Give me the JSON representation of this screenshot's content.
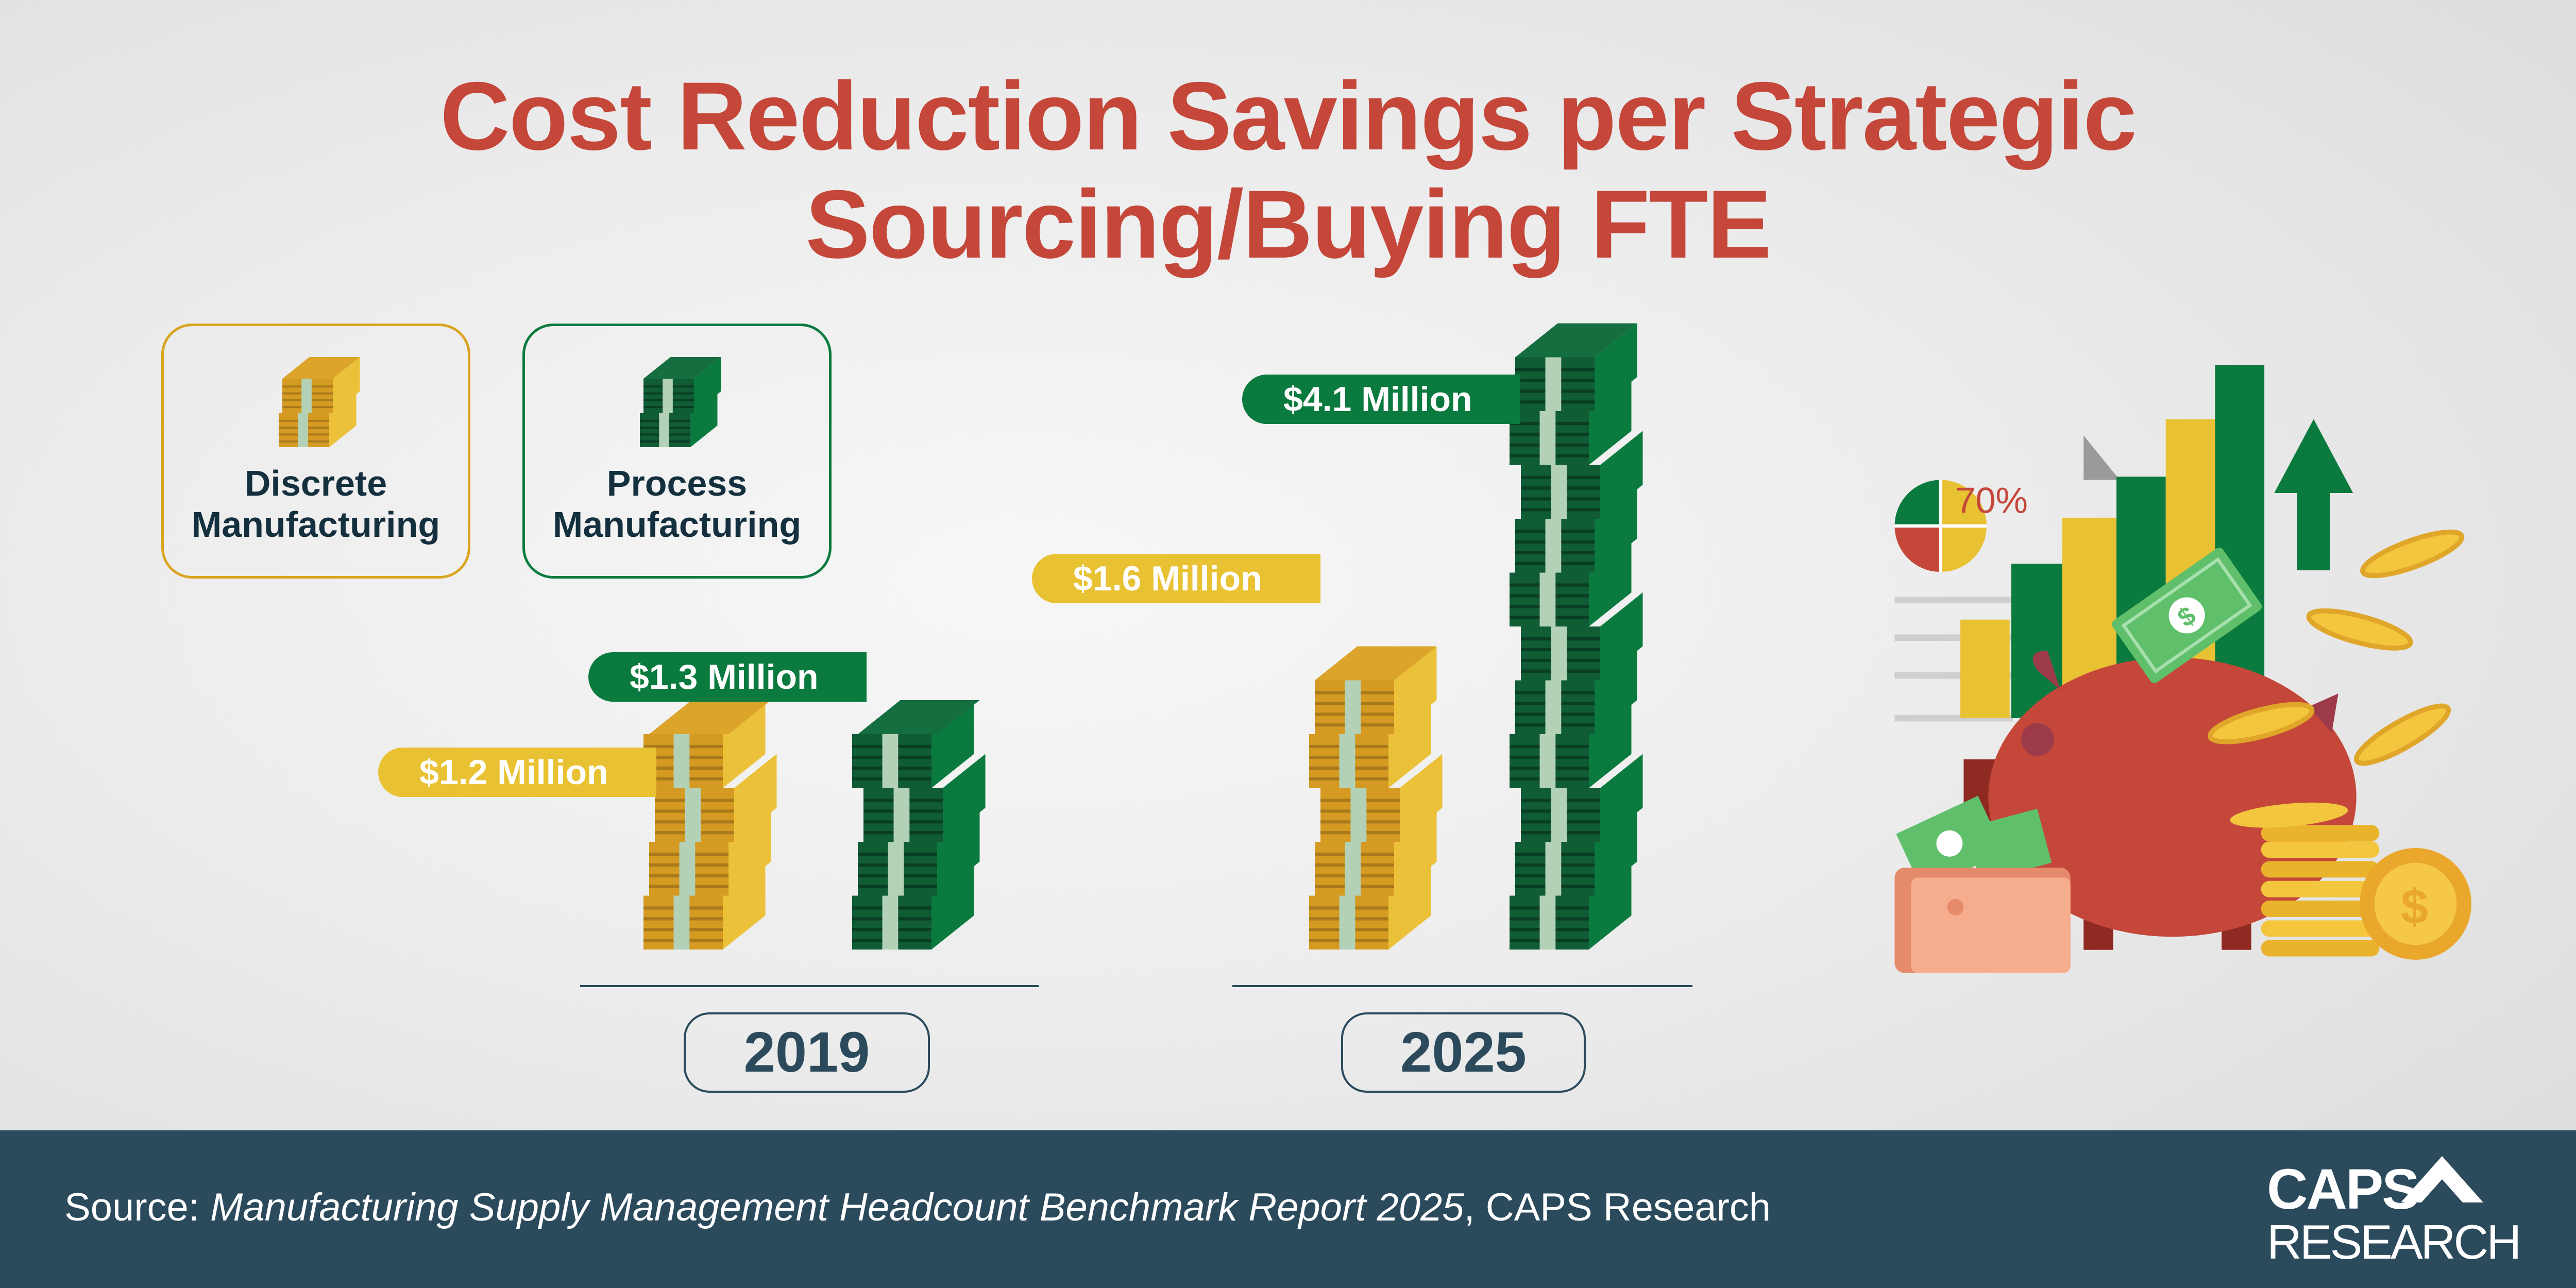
{
  "title": {
    "line1": "Cost Reduction Savings per Strategic",
    "line2": "Sourcing/Buying FTE"
  },
  "legend": [
    {
      "line1": "Discrete",
      "line2": "Manufacturing",
      "color": "#d9a520"
    },
    {
      "line1": "Process",
      "line2": "Manufacturing",
      "color": "#0b7a3e"
    }
  ],
  "chart_data": {
    "type": "bar",
    "categories": [
      "2019",
      "2025"
    ],
    "series": [
      {
        "name": "Discrete Manufacturing",
        "values": [
          1.2,
          1.6
        ],
        "labels": [
          "$1.2 Million",
          "$1.6 Million"
        ],
        "color": "#e9bc2c"
      },
      {
        "name": "Process Manufacturing",
        "values": [
          1.3,
          4.1
        ],
        "labels": [
          "$1.3 Million",
          "$4.1 Million"
        ],
        "color": "#0b7a3e"
      }
    ],
    "unit": "Million USD"
  },
  "illustration": {
    "pie_label": "70%",
    "coin_symbol": "$"
  },
  "footer": {
    "source_prefix": "Source: ",
    "source_title": "Manufacturing Supply Management Headcount Benchmark Report 2025",
    "source_suffix": ", CAPS Research",
    "logo_line1": "CAPS",
    "logo_line2": "RESEARCH",
    "bg": "#2b4a5c"
  }
}
